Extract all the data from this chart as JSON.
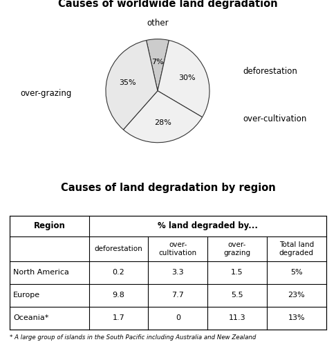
{
  "pie_title": "Causes of worldwide land degradation",
  "table_title": "Causes of land degradation by region",
  "pie_labels": [
    "other",
    "deforestation",
    "over-cultivation",
    "over-grazing"
  ],
  "pie_values": [
    7,
    30,
    28,
    35
  ],
  "pie_colors": [
    "#cccccc",
    "#f0f0f0",
    "#f0f0f0",
    "#e8e8e8"
  ],
  "table_col0_header": "Region",
  "table_span_header": "% land degraded by...",
  "table_subheaders": [
    "deforestation",
    "over-\ncultivation",
    "over-\ngrazing",
    "Total land\ndegraded"
  ],
  "table_rows": [
    [
      "North America",
      "0.2",
      "3.3",
      "1.5",
      "5%"
    ],
    [
      "Europe",
      "9.8",
      "7.7",
      "5.5",
      "23%"
    ],
    [
      "Oceania*",
      "1.7",
      "0",
      "11.3",
      "13%"
    ]
  ],
  "footnote": "* A large group of islands in the South Pacific including Australia and New Zealand",
  "bg_color": "#ffffff",
  "text_color": "#000000"
}
